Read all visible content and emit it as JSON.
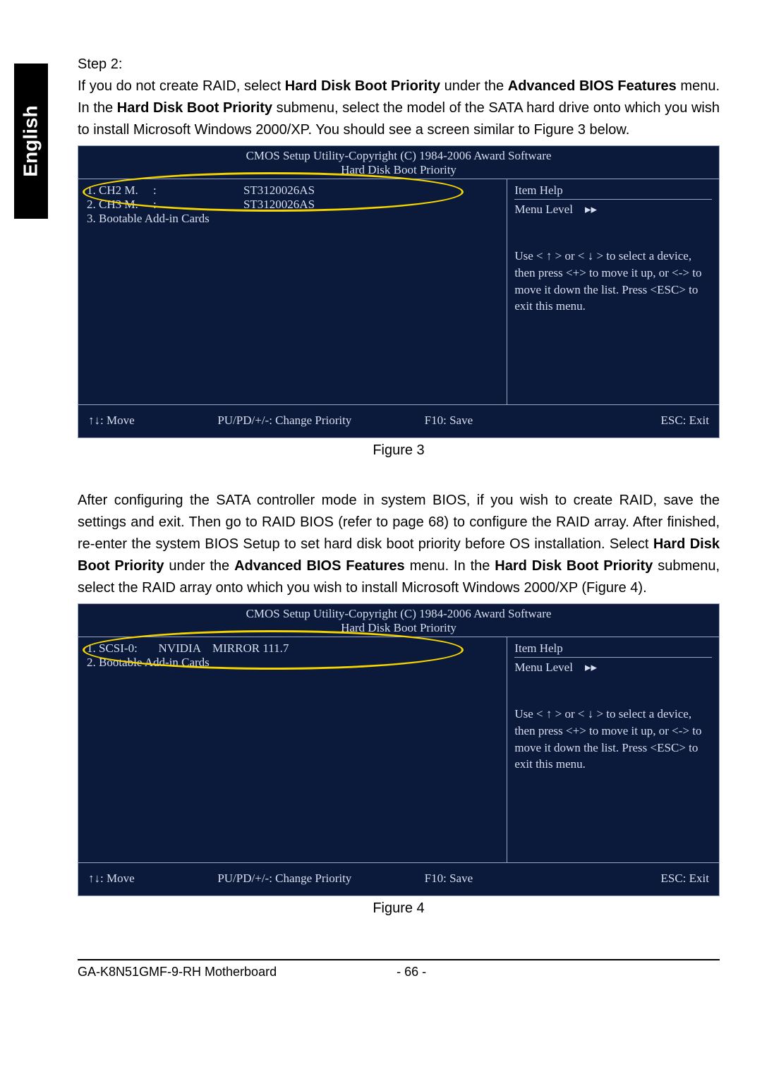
{
  "language_tab": "English",
  "step_label": "Step 2:",
  "intro_paragraph": {
    "pre1": "If you do not create RAID, select ",
    "b1": "Hard Disk Boot Priority",
    "mid1": " under the ",
    "b2": "Advanced BIOS Features",
    "mid2": " menu. In the ",
    "b3": "Hard Disk Boot Priority",
    "post": " submenu, select the model of the SATA hard drive onto which you wish to install Microsoft Windows 2000/XP. You should see a screen similar to Figure 3 below."
  },
  "bios_common": {
    "title_line": "CMOS Setup Utility-Copyright (C) 1984-2006 Award Software",
    "subtitle": "Hard Disk Boot Priority",
    "item_help": "Item Help",
    "menu_level_label": "Menu Level",
    "menu_level_marker": "▸▸",
    "help_text": "Use < ↑ >    or < ↓ > to select a device, then press <+> to move it up, or <-> to move it down the list. Press <ESC> to exit this menu.",
    "footer": {
      "move": "↑↓: Move",
      "change": "PU/PD/+/-: Change Priority",
      "save": "F10: Save",
      "exit": "ESC: Exit"
    },
    "colors": {
      "bg": "#0b1a3a",
      "text": "#d8def0",
      "border": "#9aa6c4",
      "highlight": "#f5d400"
    }
  },
  "fig3": {
    "rows": [
      "1. CH2 M.     :                             ST3120026AS",
      "2. CH3 M.     :                             ST3120026AS",
      "3. Bootable Add-in Cards"
    ],
    "caption": "Figure 3"
  },
  "mid_paragraph": {
    "pre": "After configuring the SATA controller mode in system BIOS, if you wish to create RAID, save the settings and exit. Then go to RAID BIOS (refer to page 68) to configure the RAID array. After finished, re-enter the system BIOS Setup to set hard disk boot priority before OS installation. Select ",
    "b1": "Hard Disk Boot Priority",
    "mid1": " under the ",
    "b2": "Advanced BIOS Features",
    "mid2": " menu. In the ",
    "b3": "Hard Disk Boot Priority",
    "post": " submenu, select the RAID array onto which you wish to install Microsoft Windows 2000/XP (Figure 4)."
  },
  "fig4": {
    "rows": [
      "1. SCSI-0:       NVIDIA    MIRROR 111.7",
      "2. Bootable Add-in Cards"
    ],
    "caption": "Figure 4"
  },
  "footer": {
    "left": "GA-K8N51GMF-9-RH Motherboard",
    "page": "- 66 -"
  }
}
